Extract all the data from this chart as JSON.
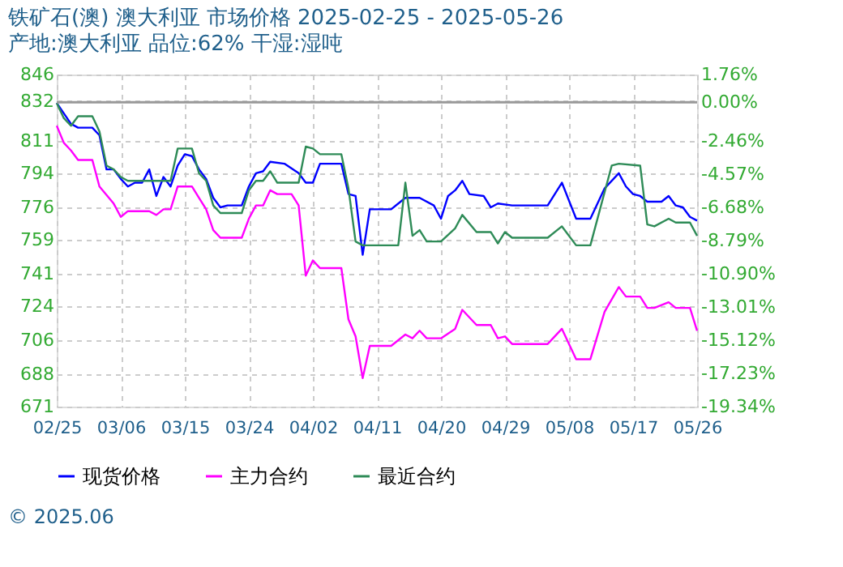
{
  "chart_data": {
    "type": "line",
    "title": "铁矿石(澳) 澳大利亚 市场价格 2025-02-25 - 2025-05-26",
    "subtitle": "产地:澳大利亚 品位:62% 干湿:湿吨",
    "annotations": [
      "© 2025.06"
    ],
    "series": [
      {
        "name": "现货价格",
        "color": "#0000ff",
        "x": [
          "2025-02-25",
          "2025-02-27",
          "2025-02-28",
          "2025-03-02",
          "2025-03-03",
          "2025-03-04",
          "2025-03-05",
          "2025-03-06",
          "2025-03-07",
          "2025-03-08",
          "2025-03-09",
          "2025-03-10",
          "2025-03-11",
          "2025-03-12",
          "2025-03-13",
          "2025-03-14",
          "2025-03-15",
          "2025-03-16",
          "2025-03-17",
          "2025-03-18",
          "2025-03-19",
          "2025-03-20",
          "2025-03-21",
          "2025-03-23",
          "2025-03-24",
          "2025-03-25",
          "2025-03-26",
          "2025-03-27",
          "2025-03-29",
          "2025-03-31",
          "2025-04-01",
          "2025-04-02",
          "2025-04-03",
          "2025-04-06",
          "2025-04-07",
          "2025-04-08",
          "2025-04-09",
          "2025-04-10",
          "2025-04-13",
          "2025-04-15",
          "2025-04-17",
          "2025-04-19",
          "2025-04-20",
          "2025-04-21",
          "2025-04-22",
          "2025-04-23",
          "2025-04-24",
          "2025-04-26",
          "2025-04-27",
          "2025-04-28",
          "2025-04-30",
          "2025-05-05",
          "2025-05-07",
          "2025-05-09",
          "2025-05-11",
          "2025-05-13",
          "2025-05-15",
          "2025-05-16",
          "2025-05-17",
          "2025-05-18",
          "2025-05-19",
          "2025-05-21",
          "2025-05-22",
          "2025-05-23",
          "2025-05-24",
          "2025-05-25",
          "2025-05-26"
        ],
        "values": [
          831,
          820,
          818,
          818,
          814,
          796,
          796,
          791,
          787,
          789,
          789,
          796,
          782,
          792,
          787,
          798,
          804,
          803,
          796,
          791,
          781,
          776,
          777,
          777,
          787,
          794,
          795,
          800,
          799,
          794,
          789,
          789,
          799,
          799,
          783,
          782,
          751,
          775,
          775,
          781,
          781,
          777,
          770,
          782,
          785,
          790,
          783,
          782,
          776,
          778,
          777,
          777,
          789,
          770,
          770,
          786,
          794,
          787,
          783,
          782,
          779,
          779,
          782,
          777,
          776,
          771,
          769
        ]
      },
      {
        "name": "主力合约",
        "color": "#ff00ff",
        "x": [
          "2025-02-25",
          "2025-02-26",
          "2025-02-27",
          "2025-02-28",
          "2025-03-02",
          "2025-03-03",
          "2025-03-05",
          "2025-03-06",
          "2025-03-07",
          "2025-03-10",
          "2025-03-11",
          "2025-03-12",
          "2025-03-13",
          "2025-03-14",
          "2025-03-16",
          "2025-03-17",
          "2025-03-18",
          "2025-03-19",
          "2025-03-20",
          "2025-03-23",
          "2025-03-24",
          "2025-03-25",
          "2025-03-26",
          "2025-03-27",
          "2025-03-28",
          "2025-03-30",
          "2025-03-31",
          "2025-04-01",
          "2025-04-02",
          "2025-04-03",
          "2025-04-06",
          "2025-04-07",
          "2025-04-08",
          "2025-04-09",
          "2025-04-10",
          "2025-04-13",
          "2025-04-15",
          "2025-04-16",
          "2025-04-17",
          "2025-04-18",
          "2025-04-20",
          "2025-04-22",
          "2025-04-23",
          "2025-04-25",
          "2025-04-27",
          "2025-04-28",
          "2025-04-29",
          "2025-04-30",
          "2025-05-05",
          "2025-05-07",
          "2025-05-09",
          "2025-05-11",
          "2025-05-13",
          "2025-05-15",
          "2025-05-16",
          "2025-05-18",
          "2025-05-19",
          "2025-05-20",
          "2025-05-22",
          "2025-05-23",
          "2025-05-25",
          "2025-05-26"
        ],
        "values": [
          819,
          810,
          806,
          801,
          801,
          787,
          778,
          771,
          774,
          774,
          772,
          775,
          775,
          787,
          787,
          781,
          775,
          764,
          760,
          760,
          770,
          777,
          777,
          785,
          783,
          783,
          777,
          740,
          748,
          744,
          744,
          717,
          708,
          686,
          703,
          703,
          709,
          707,
          711,
          707,
          707,
          712,
          722,
          714,
          714,
          707,
          708,
          704,
          704,
          712,
          696,
          696,
          721,
          734,
          729,
          729,
          723,
          723,
          726,
          723,
          723,
          711
        ]
      },
      {
        "name": "最近合约",
        "color": "#2e8b57",
        "x": [
          "2025-02-25",
          "2025-02-26",
          "2025-02-27",
          "2025-02-28",
          "2025-03-02",
          "2025-03-03",
          "2025-03-04",
          "2025-03-05",
          "2025-03-06",
          "2025-03-07",
          "2025-03-13",
          "2025-03-14",
          "2025-03-16",
          "2025-03-17",
          "2025-03-18",
          "2025-03-19",
          "2025-03-20",
          "2025-03-23",
          "2025-03-24",
          "2025-03-25",
          "2025-03-26",
          "2025-03-27",
          "2025-03-28",
          "2025-03-31",
          "2025-04-01",
          "2025-04-02",
          "2025-04-03",
          "2025-04-06",
          "2025-04-07",
          "2025-04-08",
          "2025-04-09",
          "2025-04-14",
          "2025-04-15",
          "2025-04-16",
          "2025-04-17",
          "2025-04-18",
          "2025-04-20",
          "2025-04-22",
          "2025-04-23",
          "2025-04-25",
          "2025-04-27",
          "2025-04-28",
          "2025-04-29",
          "2025-04-30",
          "2025-05-05",
          "2025-05-07",
          "2025-05-09",
          "2025-05-11",
          "2025-05-14",
          "2025-05-15",
          "2025-05-18",
          "2025-05-19",
          "2025-05-20",
          "2025-05-22",
          "2025-05-23",
          "2025-05-25",
          "2025-05-26"
        ],
        "values": [
          831,
          823,
          819,
          824,
          824,
          816,
          798,
          796,
          792,
          790,
          790,
          807,
          807,
          794,
          790,
          777,
          773,
          773,
          785,
          790,
          790,
          795,
          789,
          789,
          808,
          807,
          804,
          804,
          786,
          758,
          756,
          756,
          789,
          761,
          764,
          758,
          758,
          765,
          772,
          763,
          763,
          757,
          763,
          760,
          760,
          766,
          756,
          756,
          798,
          799,
          798,
          767,
          766,
          770,
          768,
          768,
          761
        ]
      }
    ],
    "xlim": [
      "2025-02-25",
      "2025-05-26"
    ],
    "xticks": [
      {
        "value": "2025-02-25",
        "label": "02/25"
      },
      {
        "value": "2025-03-06",
        "label": "03/06"
      },
      {
        "value": "2025-03-15",
        "label": "03/15"
      },
      {
        "value": "2025-03-24",
        "label": "03/24"
      },
      {
        "value": "2025-04-02",
        "label": "04/02"
      },
      {
        "value": "2025-04-11",
        "label": "04/11"
      },
      {
        "value": "2025-04-20",
        "label": "04/20"
      },
      {
        "value": "2025-04-29",
        "label": "04/29"
      },
      {
        "value": "2025-05-08",
        "label": "05/08"
      },
      {
        "value": "2025-05-17",
        "label": "05/17"
      },
      {
        "value": "2025-05-26",
        "label": "05/26"
      }
    ],
    "ylim": [
      671,
      846
    ],
    "yticks": [
      671,
      688,
      706,
      724,
      741,
      759,
      776,
      794,
      811,
      832,
      846
    ],
    "y2lim": [
      -19.34,
      1.76
    ],
    "y2ticks": [
      {
        "value": 1.76,
        "label": "1.76%"
      },
      {
        "value": 0,
        "label": "0.00%"
      },
      {
        "value": -2.46,
        "label": "-2.46%"
      },
      {
        "value": -4.57,
        "label": "-4.57%"
      },
      {
        "value": -6.68,
        "label": "-6.68%"
      },
      {
        "value": -8.79,
        "label": "-8.79%"
      },
      {
        "value": -10.9,
        "label": "-10.90%"
      },
      {
        "value": -13.01,
        "label": "-13.01%"
      },
      {
        "value": -15.12,
        "label": "-15.12%"
      },
      {
        "value": -17.23,
        "label": "-17.23%"
      },
      {
        "value": -19.34,
        "label": "-19.34%"
      }
    ],
    "ref_lines": [
      {
        "axis": "y2",
        "value": 0,
        "color": "#999999",
        "line_style": "solid"
      }
    ],
    "grid": true,
    "legend": "bottom",
    "marker": "none",
    "line_style": "solid"
  }
}
